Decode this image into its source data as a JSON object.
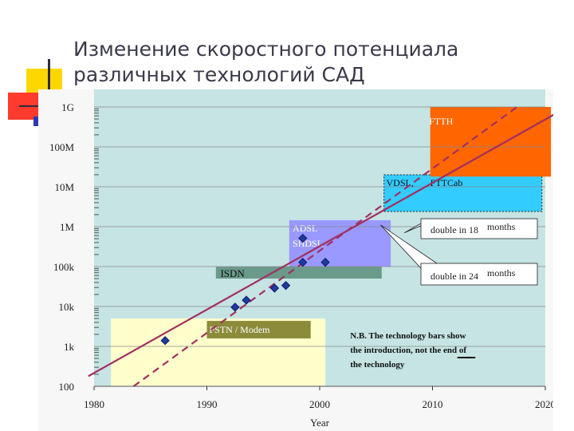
{
  "slide": {
    "title_line1": "Изменение скоростного потенциала",
    "title_line2": "различных технологий САД"
  },
  "chart_data": {
    "type": "line",
    "xlabel": "Year",
    "xlim": [
      1980,
      2020
    ],
    "x_ticks": [
      "1980",
      "1990",
      "2000",
      "2010",
      "2020"
    ],
    "ylabel": "",
    "y_scale": "log",
    "y_tick_labels": [
      "100",
      "1k",
      "10k",
      "100k",
      "1M",
      "10M",
      "100M",
      "1G"
    ],
    "technology_bars": [
      {
        "label": "PSTN / Modem",
        "color": "#ffffcc"
      },
      {
        "label": "ISDN",
        "color": "#6a9a8a"
      },
      {
        "label": "ADSL",
        "label2": "SHDSL",
        "color": "#9999ff"
      },
      {
        "label": "VDSL,",
        "label2": "FTTCab",
        "color": "#33ccff"
      },
      {
        "label": "FTTH",
        "color": "#ff6600"
      }
    ],
    "series": [
      {
        "points_year": [
          1986.3,
          1992.5,
          1993.5,
          1996,
          1997,
          1998.5,
          2000.5,
          1998.5
        ],
        "points_value": [
          1400,
          9600,
          14400,
          28800,
          33600,
          128000,
          128000,
          512000
        ]
      }
    ],
    "trend_lines": [
      {
        "style": "solid",
        "color": "#a03060",
        "from": [
          1979.5,
          180
        ],
        "to": [
          2021,
          700000000
        ]
      },
      {
        "style": "dashed",
        "color": "#a03060",
        "from": [
          1983.5,
          100
        ],
        "to": [
          2017.5,
          1000000000
        ]
      }
    ],
    "callouts": [
      {
        "text": "double in 18",
        "text2": "months"
      },
      {
        "text": "double in 24",
        "text2": "months"
      }
    ],
    "note": [
      "N.B. The technology bars show",
      "the introduction, not the end of",
      "the technology"
    ]
  }
}
